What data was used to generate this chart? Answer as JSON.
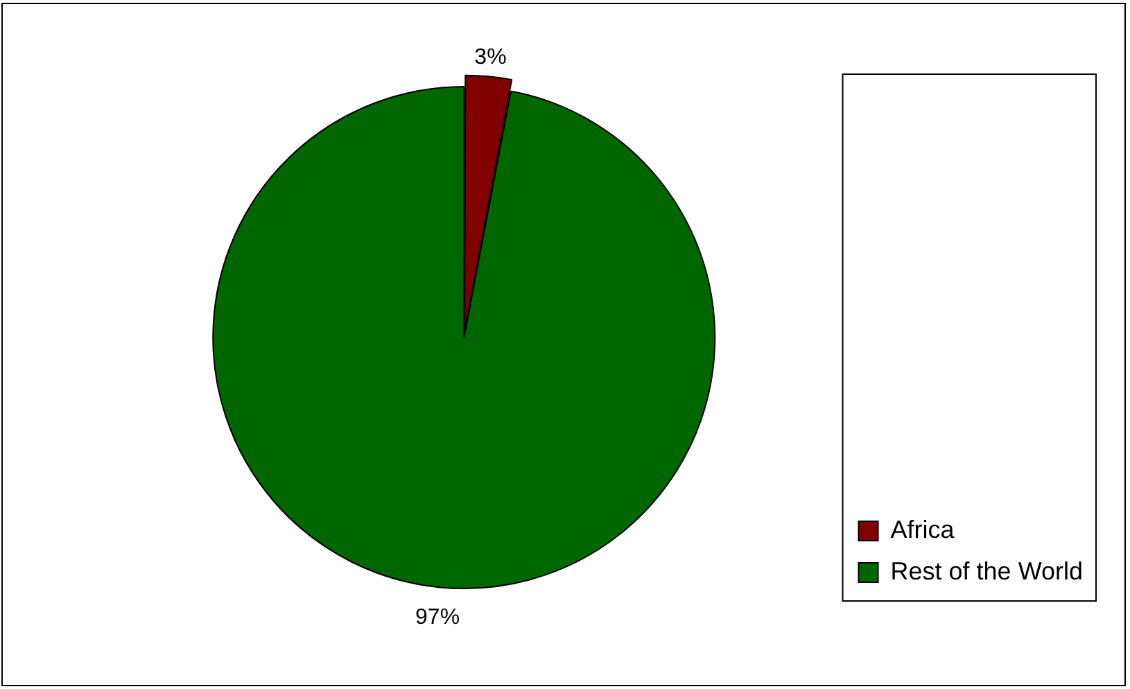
{
  "chart_data": {
    "type": "pie",
    "categories": [
      "Africa",
      "Rest of the World"
    ],
    "values": [
      3,
      97
    ],
    "colors": [
      "#800000",
      "#006600"
    ],
    "value_labels": [
      "3%",
      "97%"
    ],
    "legend": "bottom right"
  }
}
